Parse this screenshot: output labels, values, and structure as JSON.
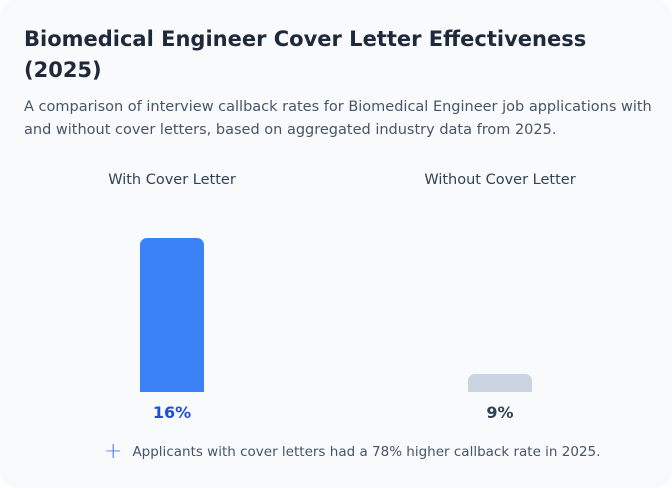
{
  "chart_data": {
    "type": "bar",
    "title": "Biomedical Engineer Cover Letter Effectiveness (2025)",
    "subtitle": "A comparison of interview callback rates for Biomedical Engineer job applications with and without cover letters, based on aggregated industry data from 2025.",
    "categories": [
      "With Cover Letter",
      "Without Cover Letter"
    ],
    "values": [
      16,
      9
    ],
    "value_labels": [
      "16%",
      "9%"
    ],
    "unit": "%",
    "colors": [
      "#3b82f6",
      "#cbd5e1"
    ],
    "label_colors": [
      "#1d4ed8",
      "#334155"
    ],
    "grid": false,
    "footnote": "Applicants with cover letters had a 78% higher callback rate in 2025.",
    "footnote_icon": "plus-icon"
  }
}
